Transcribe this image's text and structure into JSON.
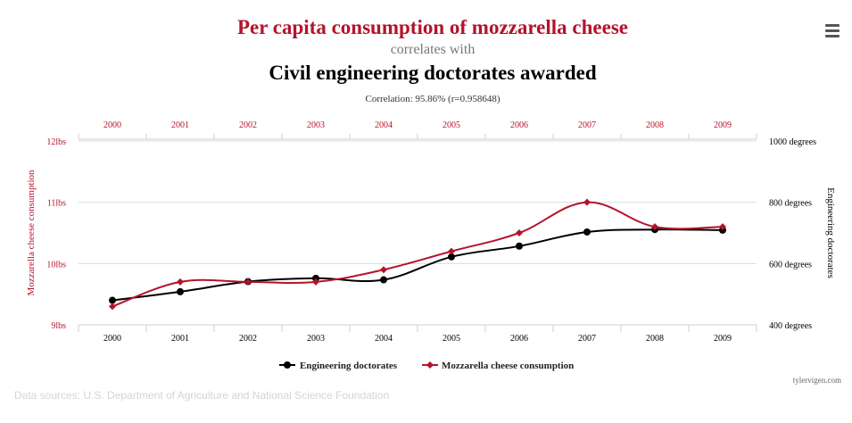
{
  "colors": {
    "cheese": "#b5132b",
    "doctorates": "#000000",
    "grid": "#d8dee4",
    "axis": "#c8d2da",
    "subtitle": "#777777"
  },
  "header": {
    "title": "Per capita consumption of mozzarella cheese",
    "correlates": "correlates with",
    "subtitle2": "Civil engineering doctorates awarded",
    "correlation": "Correlation: 95.86% (r=0.958648)"
  },
  "menu_icon": "hamburger-menu-icon",
  "credit": "tylervigen.com",
  "sources": "Data sources: U.S. Department of Agriculture and National Science Foundation",
  "chart_data": {
    "type": "line",
    "categories": [
      "2000",
      "2001",
      "2002",
      "2003",
      "2004",
      "2005",
      "2006",
      "2007",
      "2008",
      "2009"
    ],
    "series": [
      {
        "name": "Engineering doctorates",
        "axis": "right",
        "marker": "circle",
        "values": [
          480,
          508,
          541,
          552,
          547,
          622,
          657,
          703,
          711,
          709
        ]
      },
      {
        "name": "Mozzarella cheese consumption",
        "axis": "left",
        "marker": "diamond",
        "values": [
          9.3,
          9.7,
          9.7,
          9.7,
          9.9,
          10.2,
          10.5,
          11,
          10.6,
          10.6
        ]
      }
    ],
    "left_axis": {
      "label": "Mozzarella cheese consumption",
      "ylim": [
        9,
        12
      ],
      "ticks": [
        "9lbs",
        "10lbs",
        "11lbs",
        "12lbs"
      ]
    },
    "right_axis": {
      "label": "Engineering doctorates",
      "ylim": [
        400,
        1000
      ],
      "ticks": [
        "400 degrees",
        "600 degrees",
        "800 degrees",
        "1000 degrees"
      ]
    },
    "grid": true,
    "legend_position": "bottom-center"
  }
}
